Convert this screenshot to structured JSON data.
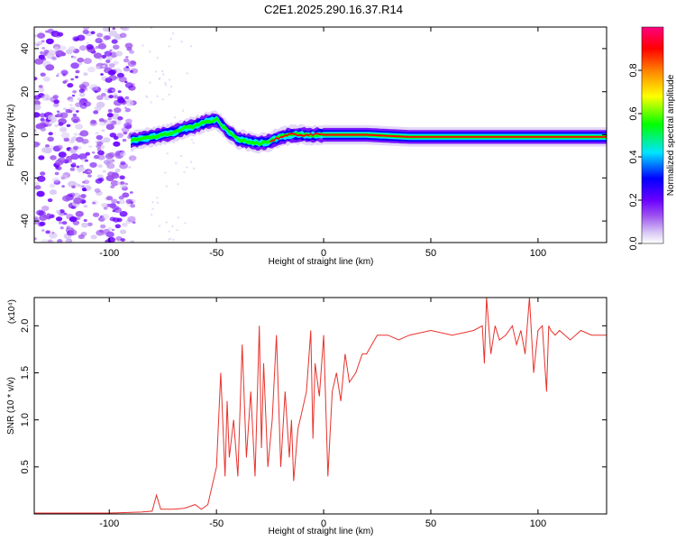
{
  "chart_data": [
    {
      "type": "heatmap",
      "title": "C2E1.2025.290.16.37.R14",
      "xlabel": "Height of straight line (km)",
      "ylabel": "Frequency (Hz)",
      "xlim": [
        -135,
        132
      ],
      "ylim": [
        -50,
        50
      ],
      "x_ticks": [
        "-100",
        "-50",
        "0",
        "50",
        "100"
      ],
      "y_ticks": [
        "-40",
        "-20",
        "0",
        "20",
        "40"
      ],
      "colorbar": {
        "label": "Normalized spectral amplitude",
        "range": [
          0,
          1
        ],
        "ticks": [
          "0.0",
          "0.2",
          "0.4",
          "0.6",
          "0.8"
        ],
        "colors": [
          "#ffffff",
          "#d8c8f4",
          "#9b4ff0",
          "#6a00ff",
          "#0000ff",
          "#00e5ff",
          "#00ff00",
          "#ffff00",
          "#ff8000",
          "#ff0000",
          "#ff0080"
        ]
      },
      "ridge": {
        "x": [
          -90,
          -85,
          -80,
          -75,
          -70,
          -65,
          -60,
          -55,
          -50,
          -45,
          -40,
          -35,
          -30,
          -25,
          -20,
          -15,
          -10,
          -5,
          0,
          10,
          20,
          40,
          60,
          80,
          100,
          120,
          132
        ],
        "freq": [
          -3,
          -2,
          -1,
          0,
          1,
          3,
          4,
          6,
          7,
          2,
          -2,
          -3,
          -4,
          -3,
          -1,
          0,
          0,
          0,
          0,
          0,
          0,
          -1,
          -1,
          -1,
          -1,
          -1,
          -1
        ]
      }
    },
    {
      "type": "line",
      "xlabel": "Height of straight line (km)",
      "ylabel": "SNR (10 * v/v)",
      "y_scale_note": "(x10⁴)",
      "xlim": [
        -135,
        132
      ],
      "ylim": [
        0,
        2.3
      ],
      "x_ticks": [
        "-100",
        "-50",
        "0",
        "50",
        "100"
      ],
      "y_ticks": [
        "0.5",
        "1.0",
        "1.5",
        "2.0"
      ],
      "color": "#e8322c",
      "series": [
        {
          "x": [
            -135,
            -120,
            -100,
            -85,
            -80,
            -78,
            -76,
            -70,
            -65,
            -60,
            -57,
            -54,
            -52,
            -50,
            -48,
            -46,
            -45,
            -44,
            -42,
            -40,
            -38,
            -36,
            -34,
            -32,
            -30,
            -29,
            -28,
            -26,
            -24,
            -22,
            -20,
            -18,
            -16,
            -15,
            -14,
            -12,
            -10,
            -8,
            -6,
            -5,
            -4,
            -2,
            0,
            2,
            4,
            5,
            6,
            8,
            10,
            12,
            15,
            18,
            20,
            25,
            30,
            35,
            40,
            50,
            60,
            70,
            74,
            75,
            76,
            78,
            80,
            82,
            85,
            88,
            90,
            92,
            94,
            96,
            98,
            100,
            102,
            104,
            105,
            106,
            108,
            110,
            115,
            120,
            125,
            130,
            132
          ],
          "y": [
            0.01,
            0.01,
            0.01,
            0.02,
            0.03,
            0.2,
            0.05,
            0.05,
            0.06,
            0.1,
            0.05,
            0.1,
            0.3,
            0.5,
            1.5,
            0.4,
            1.2,
            0.6,
            1.0,
            0.4,
            1.8,
            0.6,
            1.3,
            0.4,
            2.0,
            0.7,
            1.6,
            0.5,
            1.0,
            1.9,
            0.5,
            1.3,
            0.6,
            1.0,
            0.35,
            0.9,
            1.1,
            1.3,
            1.95,
            0.8,
            1.6,
            1.25,
            1.9,
            0.4,
            1.3,
            1.4,
            1.5,
            1.2,
            1.7,
            1.4,
            1.5,
            1.7,
            1.7,
            1.9,
            1.9,
            1.85,
            1.9,
            1.95,
            1.9,
            1.95,
            2.0,
            1.6,
            2.3,
            1.7,
            2.0,
            1.85,
            1.9,
            2.0,
            1.8,
            1.95,
            1.7,
            2.3,
            1.5,
            1.95,
            2.0,
            1.3,
            2.0,
            1.95,
            1.9,
            1.95,
            1.85,
            1.95,
            1.9,
            1.9,
            1.9
          ]
        }
      ]
    }
  ]
}
